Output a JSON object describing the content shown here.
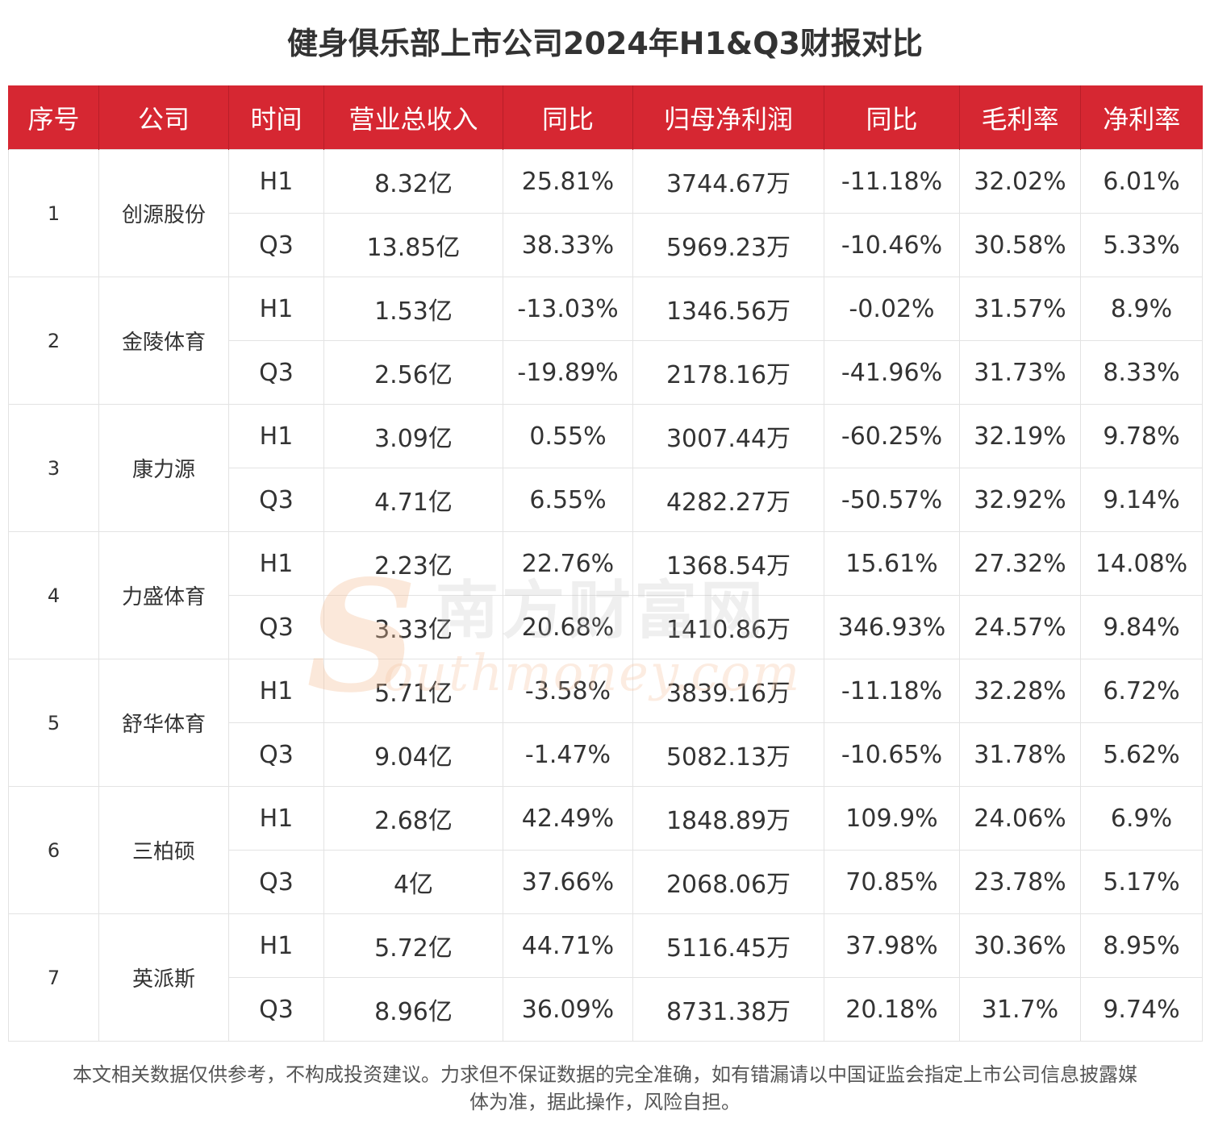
{
  "title": "健身俱乐部上市公司2024年H1&Q3财报对比",
  "watermark": {
    "logo_letter": "S",
    "cn": "南方财富网",
    "en": "outhmoney.com"
  },
  "columns": [
    "序号",
    "公司",
    "时间",
    "营业总收入",
    "同比",
    "归母净利润",
    "同比",
    "毛利率",
    "净利率"
  ],
  "rows": [
    {
      "index": "1",
      "company": "创源股份",
      "periods": [
        {
          "period": "H1",
          "revenue": "8.32亿",
          "revenue_yoy": "25.81%",
          "net_profit": "3744.67万",
          "net_profit_yoy": "-11.18%",
          "gross_margin": "32.02%",
          "net_margin": "6.01%"
        },
        {
          "period": "Q3",
          "revenue": "13.85亿",
          "revenue_yoy": "38.33%",
          "net_profit": "5969.23万",
          "net_profit_yoy": "-10.46%",
          "gross_margin": "30.58%",
          "net_margin": "5.33%"
        }
      ]
    },
    {
      "index": "2",
      "company": "金陵体育",
      "periods": [
        {
          "period": "H1",
          "revenue": "1.53亿",
          "revenue_yoy": "-13.03%",
          "net_profit": "1346.56万",
          "net_profit_yoy": "-0.02%",
          "gross_margin": "31.57%",
          "net_margin": "8.9%"
        },
        {
          "period": "Q3",
          "revenue": "2.56亿",
          "revenue_yoy": "-19.89%",
          "net_profit": "2178.16万",
          "net_profit_yoy": "-41.96%",
          "gross_margin": "31.73%",
          "net_margin": "8.33%"
        }
      ]
    },
    {
      "index": "3",
      "company": "康力源",
      "periods": [
        {
          "period": "H1",
          "revenue": "3.09亿",
          "revenue_yoy": "0.55%",
          "net_profit": "3007.44万",
          "net_profit_yoy": "-60.25%",
          "gross_margin": "32.19%",
          "net_margin": "9.78%"
        },
        {
          "period": "Q3",
          "revenue": "4.71亿",
          "revenue_yoy": "6.55%",
          "net_profit": "4282.27万",
          "net_profit_yoy": "-50.57%",
          "gross_margin": "32.92%",
          "net_margin": "9.14%"
        }
      ]
    },
    {
      "index": "4",
      "company": "力盛体育",
      "periods": [
        {
          "period": "H1",
          "revenue": "2.23亿",
          "revenue_yoy": "22.76%",
          "net_profit": "1368.54万",
          "net_profit_yoy": "15.61%",
          "gross_margin": "27.32%",
          "net_margin": "14.08%"
        },
        {
          "period": "Q3",
          "revenue": "3.33亿",
          "revenue_yoy": "20.68%",
          "net_profit": "1410.86万",
          "net_profit_yoy": "346.93%",
          "gross_margin": "24.57%",
          "net_margin": "9.84%"
        }
      ]
    },
    {
      "index": "5",
      "company": "舒华体育",
      "periods": [
        {
          "period": "H1",
          "revenue": "5.71亿",
          "revenue_yoy": "-3.58%",
          "net_profit": "3839.16万",
          "net_profit_yoy": "-11.18%",
          "gross_margin": "32.28%",
          "net_margin": "6.72%"
        },
        {
          "period": "Q3",
          "revenue": "9.04亿",
          "revenue_yoy": "-1.47%",
          "net_profit": "5082.13万",
          "net_profit_yoy": "-10.65%",
          "gross_margin": "31.78%",
          "net_margin": "5.62%"
        }
      ]
    },
    {
      "index": "6",
      "company": "三柏硕",
      "periods": [
        {
          "period": "H1",
          "revenue": "2.68亿",
          "revenue_yoy": "42.49%",
          "net_profit": "1848.89万",
          "net_profit_yoy": "109.9%",
          "gross_margin": "24.06%",
          "net_margin": "6.9%"
        },
        {
          "period": "Q3",
          "revenue": "4亿",
          "revenue_yoy": "37.66%",
          "net_profit": "2068.06万",
          "net_profit_yoy": "70.85%",
          "gross_margin": "23.78%",
          "net_margin": "5.17%"
        }
      ]
    },
    {
      "index": "7",
      "company": "英派斯",
      "periods": [
        {
          "period": "H1",
          "revenue": "5.72亿",
          "revenue_yoy": "44.71%",
          "net_profit": "5116.45万",
          "net_profit_yoy": "37.98%",
          "gross_margin": "30.36%",
          "net_margin": "8.95%"
        },
        {
          "period": "Q3",
          "revenue": "8.96亿",
          "revenue_yoy": "36.09%",
          "net_profit": "8731.38万",
          "net_profit_yoy": "20.18%",
          "gross_margin": "31.7%",
          "net_margin": "9.74%"
        }
      ]
    }
  ],
  "footer": {
    "line1": "本文相关数据仅供参考，不构成投资建议。力求但不保证数据的完全准确，如有错漏请以中国证监会指定上市公司信息披露媒",
    "line2": "体为准，据此操作，风险自担。"
  },
  "colors": {
    "header_bg": "#d62732",
    "header_text": "#ffffff",
    "border": "#e3e3e3",
    "text": "#333333"
  }
}
